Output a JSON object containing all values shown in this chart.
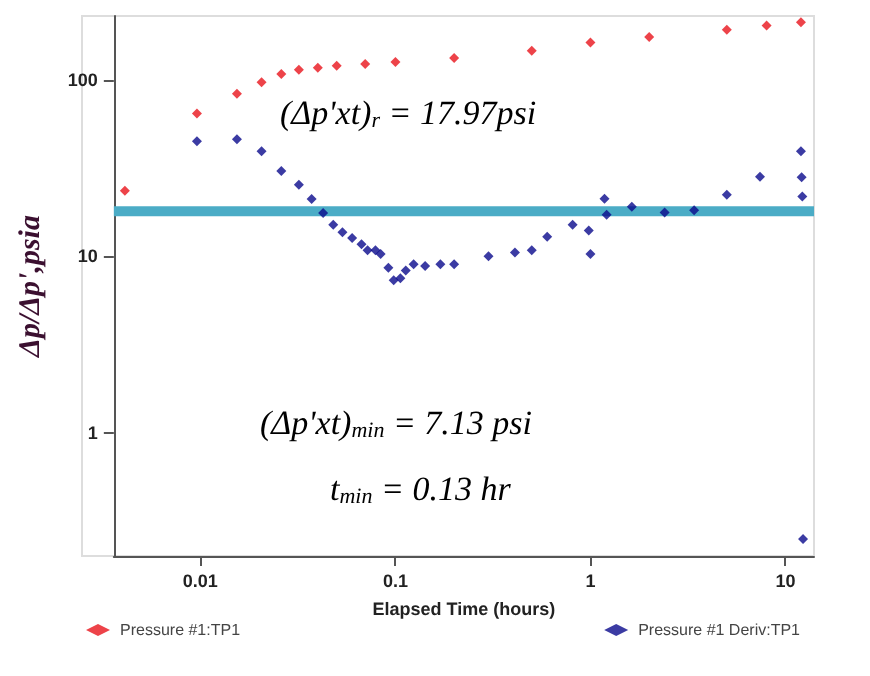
{
  "chart_data": {
    "type": "scatter",
    "xlabel": "Elapsed Time (hours)",
    "ylabel": "Δp/Δp',psia",
    "log": "xy",
    "marker": "diamond",
    "legend": "bottom",
    "grid": false,
    "xlim": [
      0.0036,
      14
    ],
    "xticks": [
      0.01,
      0.1,
      1,
      10
    ],
    "ylim": [
      0.2,
      230
    ],
    "yticks": [
      1,
      10,
      100
    ],
    "series": [
      {
        "name": "Pressure #1:TP1",
        "color": "#e8141c",
        "x": [
          0.0041,
          0.0096,
          0.0154,
          0.0206,
          0.026,
          0.032,
          0.04,
          0.05,
          0.07,
          0.1,
          0.2,
          0.5,
          1,
          2,
          5,
          8,
          12
        ],
        "values": [
          23.5,
          64.5,
          83.5,
          97,
          108,
          114,
          117,
          120,
          123,
          126,
          133,
          146,
          163,
          175,
          192,
          203,
          212
        ]
      },
      {
        "name": "Pressure #1 Deriv:TP1",
        "color": "#0a0a8c",
        "x": [
          0.0096,
          0.0154,
          0.0206,
          0.026,
          0.032,
          0.0372,
          0.0426,
          0.048,
          0.0535,
          0.06,
          0.067,
          0.072,
          0.079,
          0.084,
          0.092,
          0.098,
          0.106,
          0.113,
          0.124,
          0.142,
          0.17,
          0.2,
          0.3,
          0.41,
          0.5,
          0.6,
          0.81,
          0.98,
          1,
          1.18,
          1.21,
          1.63,
          2.4,
          3.4,
          5,
          7.4,
          12,
          12.1,
          12.2,
          12.3
        ],
        "values": [
          44.8,
          46,
          39.4,
          30.4,
          25.4,
          21.1,
          17.6,
          15.1,
          13.7,
          12.7,
          11.7,
          10.8,
          10.8,
          10.3,
          8.6,
          7.3,
          7.5,
          8.3,
          9,
          8.8,
          9,
          9,
          10,
          10.5,
          10.8,
          12.9,
          15.1,
          14,
          10.3,
          21.2,
          17.2,
          19.1,
          17.7,
          18.2,
          22.3,
          28.2,
          39.4,
          28,
          21.8,
          0.25
        ]
      }
    ],
    "ref_lines": [
      {
        "axis": "y",
        "value": 17.97,
        "color": "#4bacc6"
      }
    ],
    "annotations": [
      "(Δp'xt)$_{r}$ = 17.97psi",
      "(Δp'xt)$_{min}$ = 7.13 psi",
      "t$_{min}$ = 0.13 hr"
    ]
  }
}
